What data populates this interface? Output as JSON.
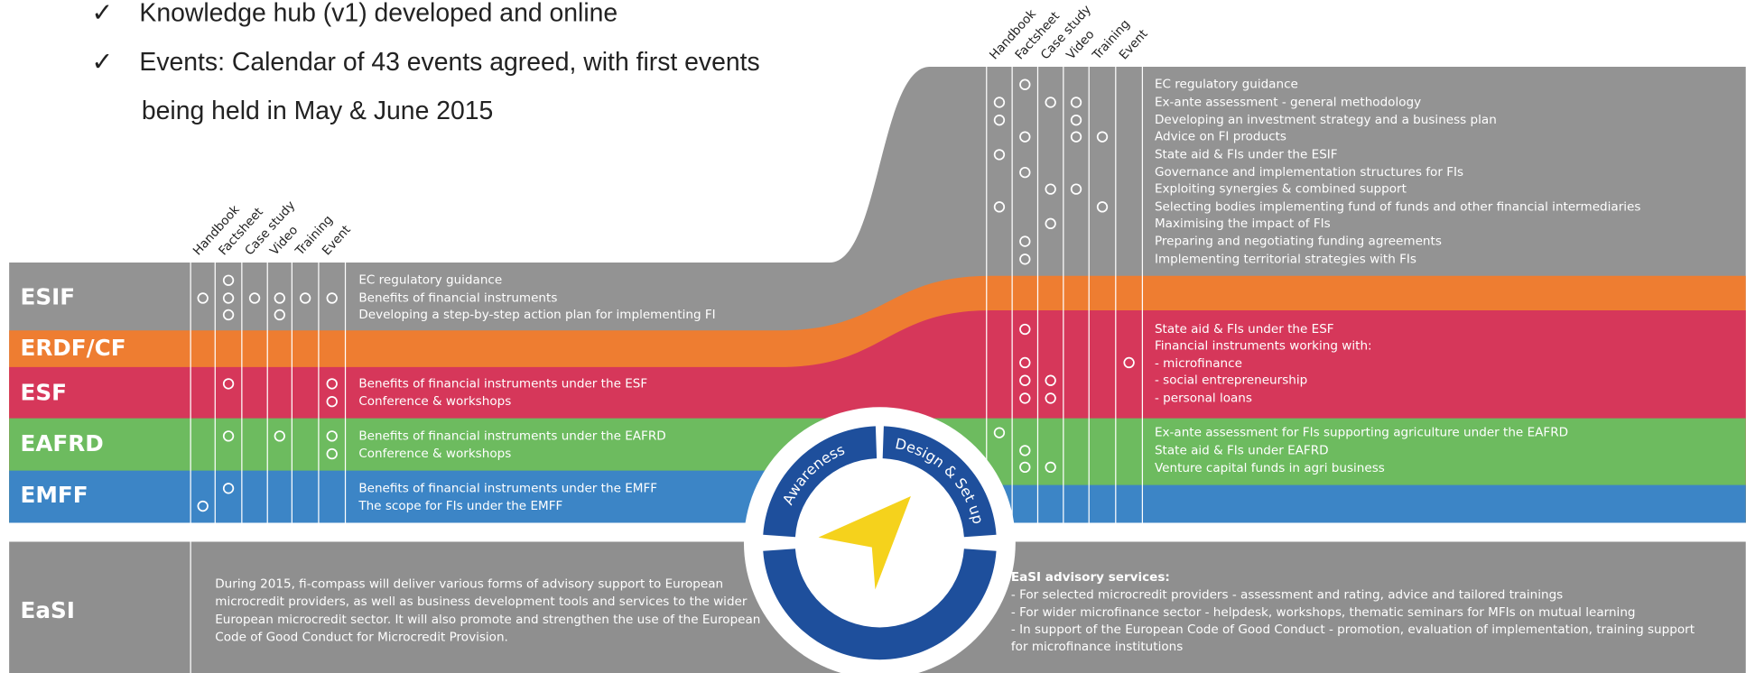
{
  "bullets": [
    {
      "lines": [
        "Knowledge hub (v1) developed and online"
      ]
    },
    {
      "lines": [
        "Events: Calendar of 43 events agreed, with first events",
        "being held in May & June 2015"
      ]
    }
  ],
  "columns": [
    "Handbook",
    "Factsheet",
    "Case study",
    "Video",
    "Training",
    "Event"
  ],
  "rows": [
    {
      "label": "ESIF",
      "left_items": [
        "EC regulatory guidance",
        "Benefits of financial instruments",
        "Developing a step-by-step action plan for implementing FI"
      ],
      "right_items": [
        "EC regulatory guidance",
        "Ex-ante assessment - general methodology",
        "Developing an investment strategy and a business plan",
        "Advice on FI products",
        "State aid & FIs under the ESIF",
        "Governance and implementation structures for FIs",
        "Exploiting synergies & combined support",
        "Selecting bodies implementing fund of funds and other financial intermediaries",
        "Maximising the impact of FIs",
        "Preparing and negotiating funding agreements",
        "Implementing territorial strategies with FIs"
      ]
    },
    {
      "label": "ERDF/CF",
      "left_items": [],
      "right_items": []
    },
    {
      "label": "ESF",
      "left_items": [
        "Benefits of financial instruments under the ESF",
        "Conference & workshops"
      ],
      "right_items": [
        "State aid & FIs under the ESF",
        "Financial instruments working with:",
        "- microfinance",
        "- social entrepreneurship",
        "- personal loans"
      ]
    },
    {
      "label": "EAFRD",
      "left_items": [
        "Benefits of financial instruments under the EAFRD",
        "Conference & workshops"
      ],
      "right_items": [
        "Ex-ante assessment for FIs supporting agriculture under the EAFRD",
        "State aid & FIs under EAFRD",
        "Venture capital funds in agri business"
      ]
    },
    {
      "label": "EMFF",
      "left_items": [
        "Benefits of financial instruments under the EMFF",
        "The scope for FIs under the EMFF"
      ],
      "right_items": []
    }
  ],
  "wheel": {
    "segments": [
      "Awareness",
      "Design & Set up"
    ]
  },
  "easi": {
    "label": "EaSI",
    "summary": [
      "During 2015, fi-compass will deliver various forms of advisory support to European",
      "microcredit providers, as well as business development tools and services to the wider",
      "European microcredit sector. It will also promote and strengthen the use of the European",
      "Code of Good Conduct for Microcredit Provision."
    ],
    "services_title": "EaSI advisory services:",
    "services": [
      "- For selected microcredit providers - assessment and rating, advice and tailored trainings",
      "- For wider microfinance sector - helpdesk, workshops, thematic seminars for MFIs on mutual learning",
      "- In support of the European Code of Good Conduct - promotion, evaluation of implementation, training support",
      "  for microfinance institutions"
    ]
  }
}
